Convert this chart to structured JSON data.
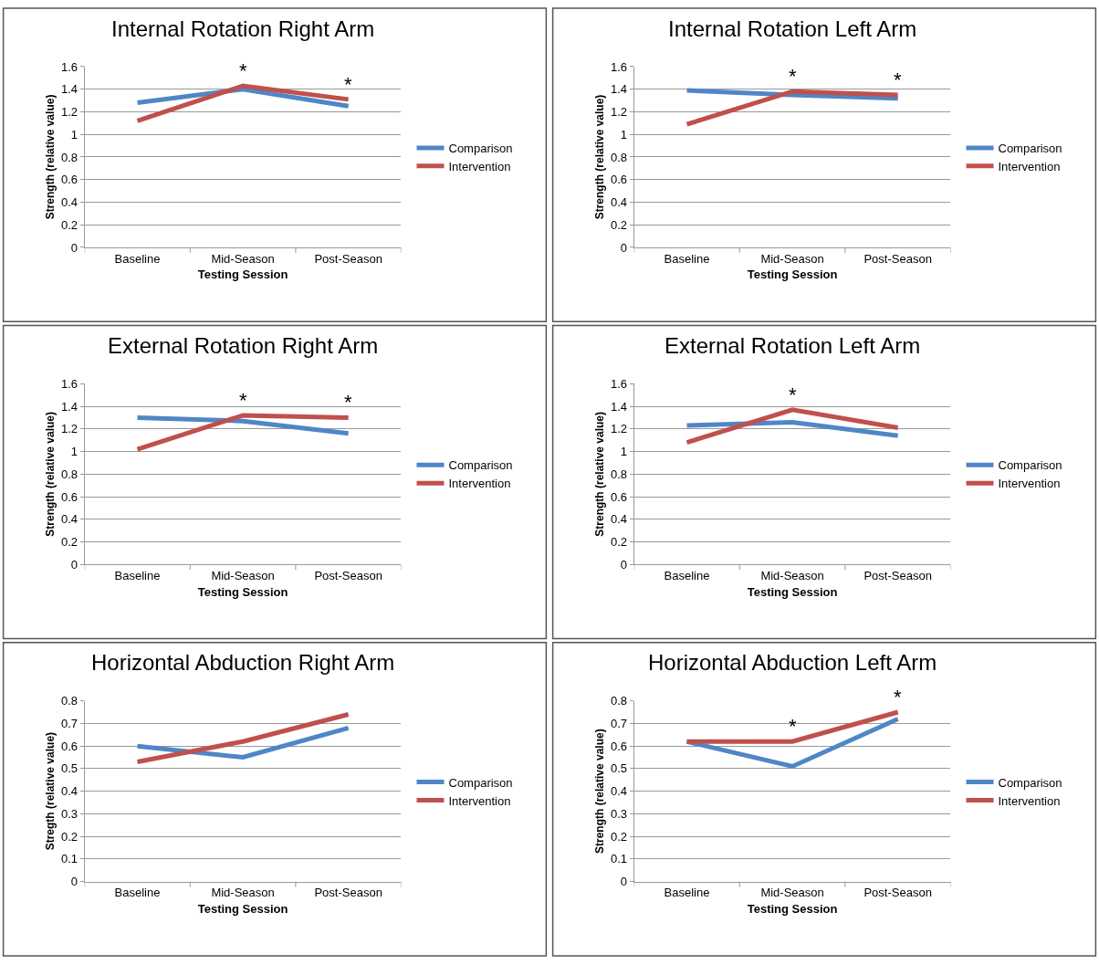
{
  "chart_data": [
    {
      "type": "line",
      "title": "Internal Rotation Right Arm",
      "xlabel": "Testing Session",
      "ylabel": "Strength (relative value)",
      "categories": [
        "Baseline",
        "Mid-Season",
        "Post-Season"
      ],
      "series": [
        {
          "name": "Comparison",
          "color": "#4f86c6",
          "values": [
            1.28,
            1.4,
            1.25
          ]
        },
        {
          "name": "Intervention",
          "color": "#c0504d",
          "values": [
            1.12,
            1.43,
            1.31
          ]
        }
      ],
      "ylim": [
        0,
        1.6
      ],
      "yticks": [
        0,
        0.2,
        0.4,
        0.6,
        0.8,
        1,
        1.2,
        1.4,
        1.6
      ],
      "grid": "y",
      "legend": "right",
      "marker": "none",
      "line_style": "solid",
      "annotations": [
        {
          "text": "*",
          "x": "Mid-Season",
          "y": 1.43
        },
        {
          "text": "*",
          "x": "Post-Season",
          "y": 1.31
        }
      ]
    },
    {
      "type": "line",
      "title": "Internal Rotation Left Arm",
      "xlabel": "Testing Session",
      "ylabel": "Strength (relative value)",
      "categories": [
        "Baseline",
        "Mid-Season",
        "Post-Season"
      ],
      "series": [
        {
          "name": "Comparison",
          "color": "#4f86c6",
          "values": [
            1.39,
            1.35,
            1.32
          ]
        },
        {
          "name": "Intervention",
          "color": "#c0504d",
          "values": [
            1.09,
            1.38,
            1.35
          ]
        }
      ],
      "ylim": [
        0,
        1.6
      ],
      "yticks": [
        0,
        0.2,
        0.4,
        0.6,
        0.8,
        1,
        1.2,
        1.4,
        1.6
      ],
      "grid": "y",
      "legend": "right",
      "marker": "none",
      "line_style": "solid",
      "annotations": [
        {
          "text": "*",
          "x": "Mid-Season",
          "y": 1.38
        },
        {
          "text": "*",
          "x": "Post-Season",
          "y": 1.35
        }
      ]
    },
    {
      "type": "line",
      "title": "External Rotation Right Arm",
      "xlabel": "Testing Session",
      "ylabel": "Strength (relative value)",
      "categories": [
        "Baseline",
        "Mid-Season",
        "Post-Season"
      ],
      "series": [
        {
          "name": "Comparison",
          "color": "#4f86c6",
          "values": [
            1.3,
            1.27,
            1.16
          ]
        },
        {
          "name": "Intervention",
          "color": "#c0504d",
          "values": [
            1.02,
            1.32,
            1.3
          ]
        }
      ],
      "ylim": [
        0,
        1.6
      ],
      "yticks": [
        0,
        0.2,
        0.4,
        0.6,
        0.8,
        1,
        1.2,
        1.4,
        1.6
      ],
      "grid": "y",
      "legend": "right",
      "marker": "none",
      "line_style": "solid",
      "annotations": [
        {
          "text": "*",
          "x": "Mid-Season",
          "y": 1.32
        },
        {
          "text": "*",
          "x": "Post-Season",
          "y": 1.3
        }
      ]
    },
    {
      "type": "line",
      "title": "External Rotation Left Arm",
      "xlabel": "Testing Session",
      "ylabel": "Strength (relative value)",
      "categories": [
        "Baseline",
        "Mid-Season",
        "Post-Season"
      ],
      "series": [
        {
          "name": "Comparison",
          "color": "#4f86c6",
          "values": [
            1.23,
            1.26,
            1.14
          ]
        },
        {
          "name": "Intervention",
          "color": "#c0504d",
          "values": [
            1.08,
            1.37,
            1.21
          ]
        }
      ],
      "ylim": [
        0,
        1.6
      ],
      "yticks": [
        0,
        0.2,
        0.4,
        0.6,
        0.8,
        1,
        1.2,
        1.4,
        1.6
      ],
      "grid": "y",
      "legend": "right",
      "marker": "none",
      "line_style": "solid",
      "annotations": [
        {
          "text": "*",
          "x": "Mid-Season",
          "y": 1.37
        }
      ]
    },
    {
      "type": "line",
      "title": "Horizontal Abduction Right Arm",
      "xlabel": "Testing Session",
      "ylabel": "Stregth (relative value)",
      "categories": [
        "Baseline",
        "Mid-Season",
        "Post-Season"
      ],
      "series": [
        {
          "name": "Comparison",
          "color": "#4f86c6",
          "values": [
            0.6,
            0.55,
            0.68
          ]
        },
        {
          "name": "Intervention",
          "color": "#c0504d",
          "values": [
            0.53,
            0.62,
            0.74
          ]
        }
      ],
      "ylim": [
        0,
        0.8
      ],
      "yticks": [
        0,
        0.1,
        0.2,
        0.3,
        0.4,
        0.5,
        0.6,
        0.7,
        0.8
      ],
      "grid": "y",
      "legend": "right",
      "marker": "none",
      "line_style": "solid"
    },
    {
      "type": "line",
      "title": "Horizontal Abduction Left Arm",
      "xlabel": "Testing Session",
      "ylabel": "Strength (relative value)",
      "categories": [
        "Baseline",
        "Mid-Season",
        "Post-Season"
      ],
      "series": [
        {
          "name": "Comparison",
          "color": "#4f86c6",
          "values": [
            0.62,
            0.51,
            0.72
          ]
        },
        {
          "name": "Intervention",
          "color": "#c0504d",
          "values": [
            0.62,
            0.62,
            0.75
          ]
        }
      ],
      "ylim": [
        0,
        0.8
      ],
      "yticks": [
        0,
        0.1,
        0.2,
        0.3,
        0.4,
        0.5,
        0.6,
        0.7,
        0.8
      ],
      "grid": "y",
      "legend": "right",
      "marker": "none",
      "line_style": "solid",
      "annotations": [
        {
          "text": "*",
          "x": "Mid-Season",
          "y": 0.62
        },
        {
          "text": "*",
          "x": "Post-Season",
          "y": 0.75
        }
      ]
    }
  ]
}
